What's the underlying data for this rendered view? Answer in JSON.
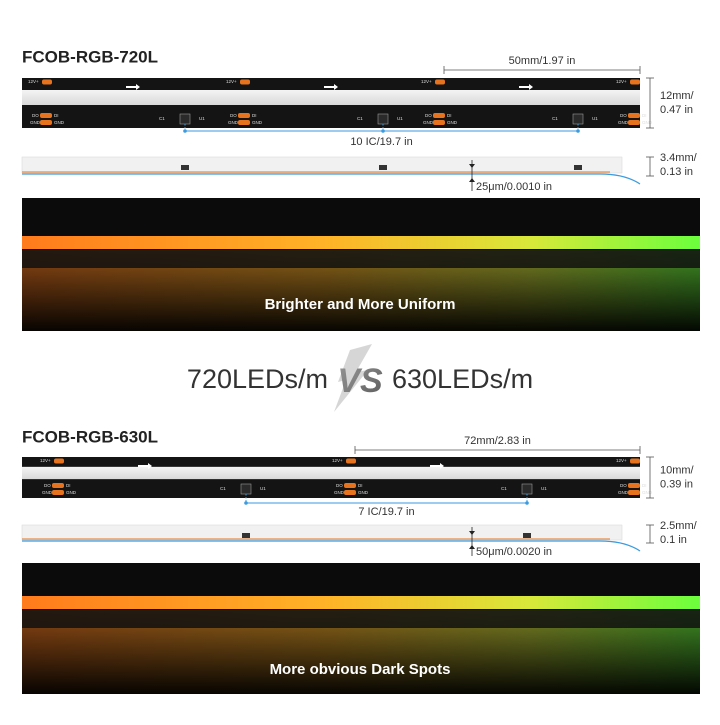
{
  "strip_720": {
    "title": "FCOB-RGB-720L",
    "cut_length": "50mm/1.97 in",
    "width": [
      "12mm/",
      "0.47 in"
    ],
    "ic_density": "10 IC/19.7 in",
    "thickness": [
      "3.4mm/",
      "0.13 in"
    ],
    "adhesive": "25μm/0.0010 in",
    "photo_caption": "Brighter and More Uniform"
  },
  "comparison": {
    "left": "720LEDs/m",
    "versus": "VS",
    "right": "630LEDs/m"
  },
  "strip_630": {
    "title": "FCOB-RGB-630L",
    "cut_length": "72mm/2.83 in",
    "width": [
      "10mm/",
      "0.39 in"
    ],
    "ic_density": "7 IC/19.7 in",
    "thickness": [
      "2.5mm/",
      "0.1 in"
    ],
    "adhesive": "50μm/0.0020 in",
    "photo_caption": "More obvious Dark Spots"
  },
  "strip_labels": {
    "power": "12V+",
    "data_out": "DO",
    "data_in": "DI",
    "ground": "GND",
    "capacitor": "C1",
    "ic": "U1"
  }
}
